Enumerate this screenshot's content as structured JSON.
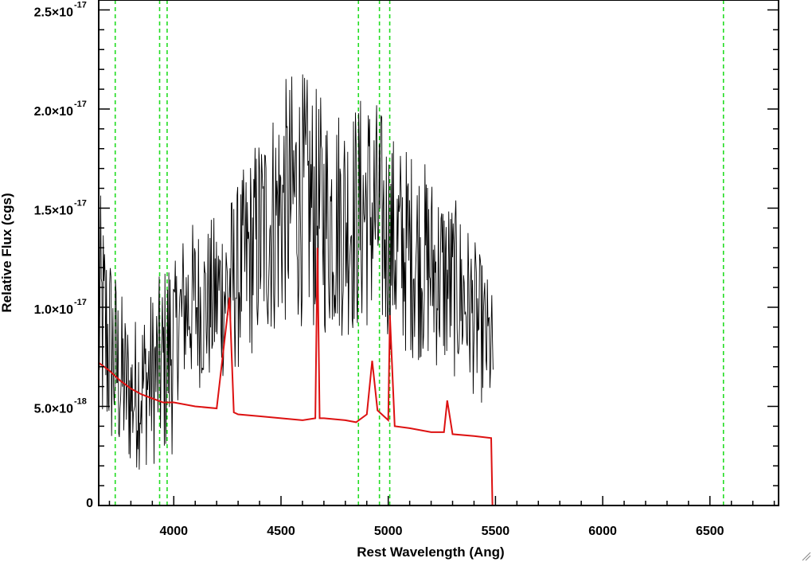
{
  "chart_data": {
    "type": "line",
    "title": "",
    "xlabel": "Rest Wavelength (Ang)",
    "ylabel": "Relative Flux (cgs)",
    "xlim": [
      3650,
      6820
    ],
    "ylim": [
      0,
      2.55e-17
    ],
    "x_ticks": [
      {
        "value": 4000,
        "label": "4000"
      },
      {
        "value": 4500,
        "label": "4500"
      },
      {
        "value": 5000,
        "label": "5000"
      },
      {
        "value": 5500,
        "label": "5500"
      },
      {
        "value": 6000,
        "label": "6000"
      },
      {
        "value": 6500,
        "label": "6500"
      }
    ],
    "y_ticks": [
      {
        "value": 0,
        "mantissa": "0",
        "exponent": ""
      },
      {
        "value": 5e-18,
        "mantissa": "5.0×10",
        "exponent": "-18"
      },
      {
        "value": 1e-17,
        "mantissa": "1.0×10",
        "exponent": "-17"
      },
      {
        "value": 1.5e-17,
        "mantissa": "1.5×10",
        "exponent": "-17"
      },
      {
        "value": 2e-17,
        "mantissa": "2.0×10",
        "exponent": "-17"
      },
      {
        "value": 2.5e-17,
        "mantissa": "2.5×10",
        "exponent": "-17"
      }
    ],
    "grid": false,
    "colors": {
      "observed": "#000000",
      "model": "#dd1111",
      "lines": "#22dd22"
    },
    "vertical_lines": [
      3727,
      3934,
      3969,
      4861,
      4959,
      5007,
      6563
    ],
    "series": [
      {
        "role": "observed",
        "x": [
          3650,
          3700,
          3750,
          3800,
          3850,
          3900,
          3950,
          4000,
          4050,
          4100,
          4150,
          4200,
          4250,
          4300,
          4350,
          4400,
          4450,
          4500,
          4550,
          4600,
          4650,
          4700,
          4750,
          4800,
          4850,
          4900,
          4950,
          5000,
          5050,
          5100,
          5150,
          5200,
          5250,
          5300,
          5350,
          5400,
          5450,
          5490
        ],
        "y": [
          9.5e-18,
          8e-18,
          6.5e-18,
          5.5e-18,
          6e-18,
          6.5e-18,
          7e-18,
          8.5e-18,
          1e-17,
          1.02e-17,
          1e-17,
          1.05e-17,
          1.1e-17,
          1.15e-17,
          1.25e-17,
          1.35e-17,
          1.42e-17,
          1.5e-17,
          1.55e-17,
          1.55e-17,
          1.5e-17,
          1.45e-17,
          1.45e-17,
          1.45e-17,
          1.45e-17,
          1.5e-17,
          1.45e-17,
          1.35e-17,
          1.3e-17,
          1.28e-17,
          1.25e-17,
          1.2e-17,
          1.15e-17,
          1.1e-17,
          1.05e-17,
          9.5e-18,
          8.5e-18,
          7.5e-18
        ]
      },
      {
        "role": "model",
        "x": [
          3650,
          3700,
          3750,
          3800,
          3850,
          3900,
          3950,
          4000,
          4100,
          4200,
          4260,
          4280,
          4300,
          4400,
          4500,
          4600,
          4660,
          4670,
          4680,
          4700,
          4800,
          4850,
          4900,
          4925,
          4950,
          5000,
          5008,
          5030,
          5100,
          5200,
          5260,
          5275,
          5300,
          5400,
          5480,
          5486,
          6820
        ],
        "y": [
          7.2e-18,
          6.8e-18,
          6.3e-18,
          5.9e-18,
          5.6e-18,
          5.4e-18,
          5.2e-18,
          5.2e-18,
          5e-18,
          4.9e-18,
          1.05e-17,
          4.7e-18,
          4.6e-18,
          4.5e-18,
          4.4e-18,
          4.3e-18,
          4.4e-18,
          1.3e-17,
          4.4e-18,
          4.4e-18,
          4.3e-18,
          4.2e-18,
          4.6e-18,
          7.3e-18,
          4.8e-18,
          4.3e-18,
          9.6e-18,
          4e-18,
          3.9e-18,
          3.7e-18,
          3.7e-18,
          5.3e-18,
          3.6e-18,
          3.5e-18,
          3.4e-18,
          0,
          0
        ]
      }
    ]
  }
}
